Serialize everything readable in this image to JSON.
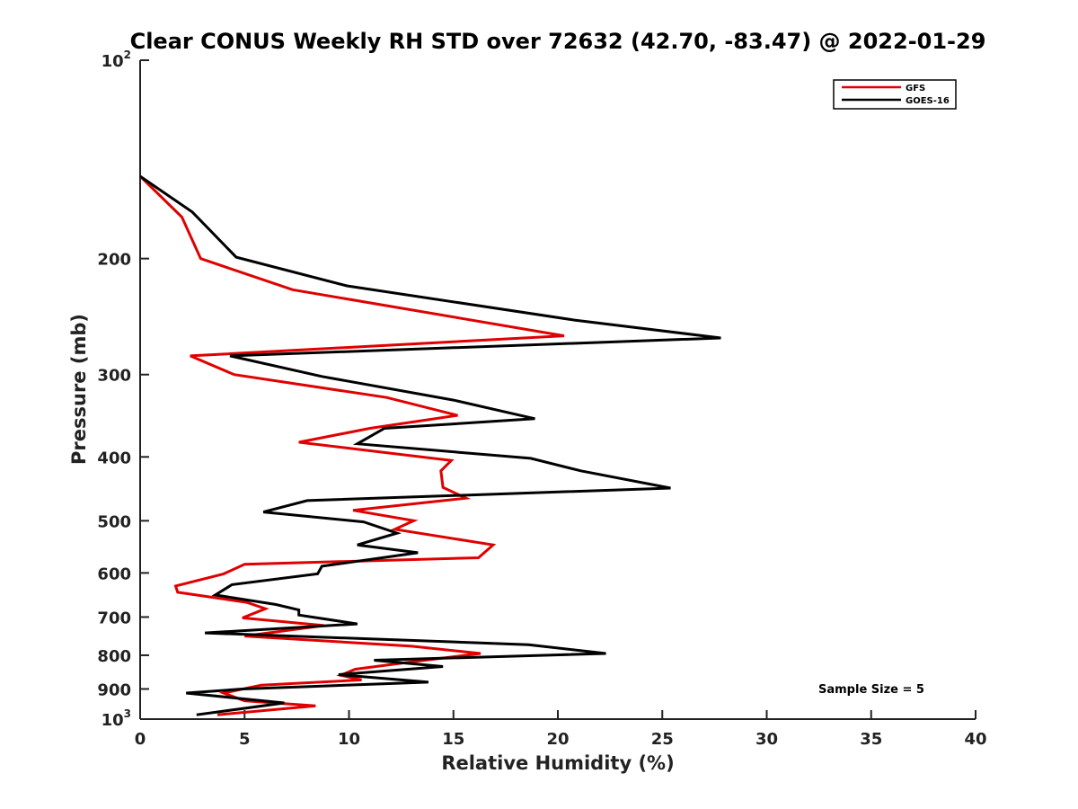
{
  "chart_data": {
    "type": "line",
    "title": "Clear CONUS Weekly RH STD over 72632 (42.70, -83.47) @ 2022-01-29",
    "xlabel": "Relative Humidity (%)",
    "ylabel": "Pressure (mb)",
    "xlim": [
      0,
      40
    ],
    "ylim": [
      100,
      1000
    ],
    "y_scale": "log",
    "y_reversed": true,
    "grid": false,
    "legend_position": "top-right",
    "annotation": "Sample Size = 5",
    "x_ticks": [
      "0",
      "5",
      "10",
      "15",
      "20",
      "25",
      "30",
      "35",
      "40"
    ],
    "y_ticks": [
      {
        "value": 100,
        "base": "10",
        "exp": "2"
      },
      {
        "value": 200,
        "label": "200"
      },
      {
        "value": 300,
        "label": "300"
      },
      {
        "value": 400,
        "label": "400"
      },
      {
        "value": 500,
        "label": "500"
      },
      {
        "value": 600,
        "label": "600"
      },
      {
        "value": 700,
        "label": "700"
      },
      {
        "value": 800,
        "label": "800"
      },
      {
        "value": 900,
        "label": "900"
      },
      {
        "value": 1000,
        "base": "10",
        "exp": "3"
      }
    ],
    "series": [
      {
        "name": "GFS",
        "color": "#e00000",
        "points": [
          [
            0.0,
            150
          ],
          [
            2.0,
            173
          ],
          [
            2.9,
            200
          ],
          [
            7.3,
            223
          ],
          [
            20.3,
            262
          ],
          [
            2.4,
            281
          ],
          [
            4.5,
            300
          ],
          [
            11.8,
            325
          ],
          [
            15.2,
            346
          ],
          [
            11.0,
            362
          ],
          [
            7.6,
            380
          ],
          [
            14.9,
            405
          ],
          [
            14.4,
            420
          ],
          [
            14.5,
            445
          ],
          [
            15.6,
            462
          ],
          [
            10.2,
            482
          ],
          [
            13.1,
            500
          ],
          [
            12.2,
            515
          ],
          [
            16.9,
            544
          ],
          [
            16.2,
            569
          ],
          [
            5.0,
            582
          ],
          [
            4.0,
            602
          ],
          [
            1.7,
            628
          ],
          [
            1.8,
            642
          ],
          [
            5.1,
            665
          ],
          [
            6.0,
            680
          ],
          [
            4.9,
            702
          ],
          [
            8.8,
            721
          ],
          [
            5.0,
            748
          ],
          [
            13.0,
            775
          ],
          [
            16.3,
            795
          ],
          [
            13.1,
            818
          ],
          [
            10.3,
            840
          ],
          [
            9.6,
            858
          ],
          [
            10.6,
            872
          ],
          [
            5.8,
            888
          ],
          [
            4.0,
            913
          ],
          [
            5.0,
            938
          ],
          [
            8.4,
            955
          ],
          [
            3.7,
            985
          ]
        ]
      },
      {
        "name": "GOES-16",
        "color": "#000000",
        "points": [
          [
            0.0,
            150
          ],
          [
            2.5,
            170
          ],
          [
            4.6,
            199
          ],
          [
            9.9,
            220
          ],
          [
            20.8,
            248
          ],
          [
            27.8,
            264
          ],
          [
            4.3,
            281
          ],
          [
            8.7,
            302
          ],
          [
            15.0,
            328
          ],
          [
            18.9,
            350
          ],
          [
            11.7,
            362
          ],
          [
            10.4,
            382
          ],
          [
            18.7,
            402
          ],
          [
            21.1,
            420
          ],
          [
            25.4,
            446
          ],
          [
            8.0,
            466
          ],
          [
            5.9,
            485
          ],
          [
            10.7,
            502
          ],
          [
            12.3,
            522
          ],
          [
            10.4,
            544
          ],
          [
            13.3,
            559
          ],
          [
            8.7,
            586
          ],
          [
            8.5,
            602
          ],
          [
            4.4,
            625
          ],
          [
            3.6,
            648
          ],
          [
            6.5,
            670
          ],
          [
            7.6,
            683
          ],
          [
            7.6,
            695
          ],
          [
            10.4,
            717
          ],
          [
            3.1,
            740
          ],
          [
            18.6,
            771
          ],
          [
            22.3,
            795
          ],
          [
            11.2,
            814
          ],
          [
            14.5,
            832
          ],
          [
            9.5,
            856
          ],
          [
            13.8,
            879
          ],
          [
            4.9,
            900
          ],
          [
            2.2,
            913
          ],
          [
            6.9,
            945
          ],
          [
            2.7,
            985
          ]
        ]
      }
    ]
  }
}
